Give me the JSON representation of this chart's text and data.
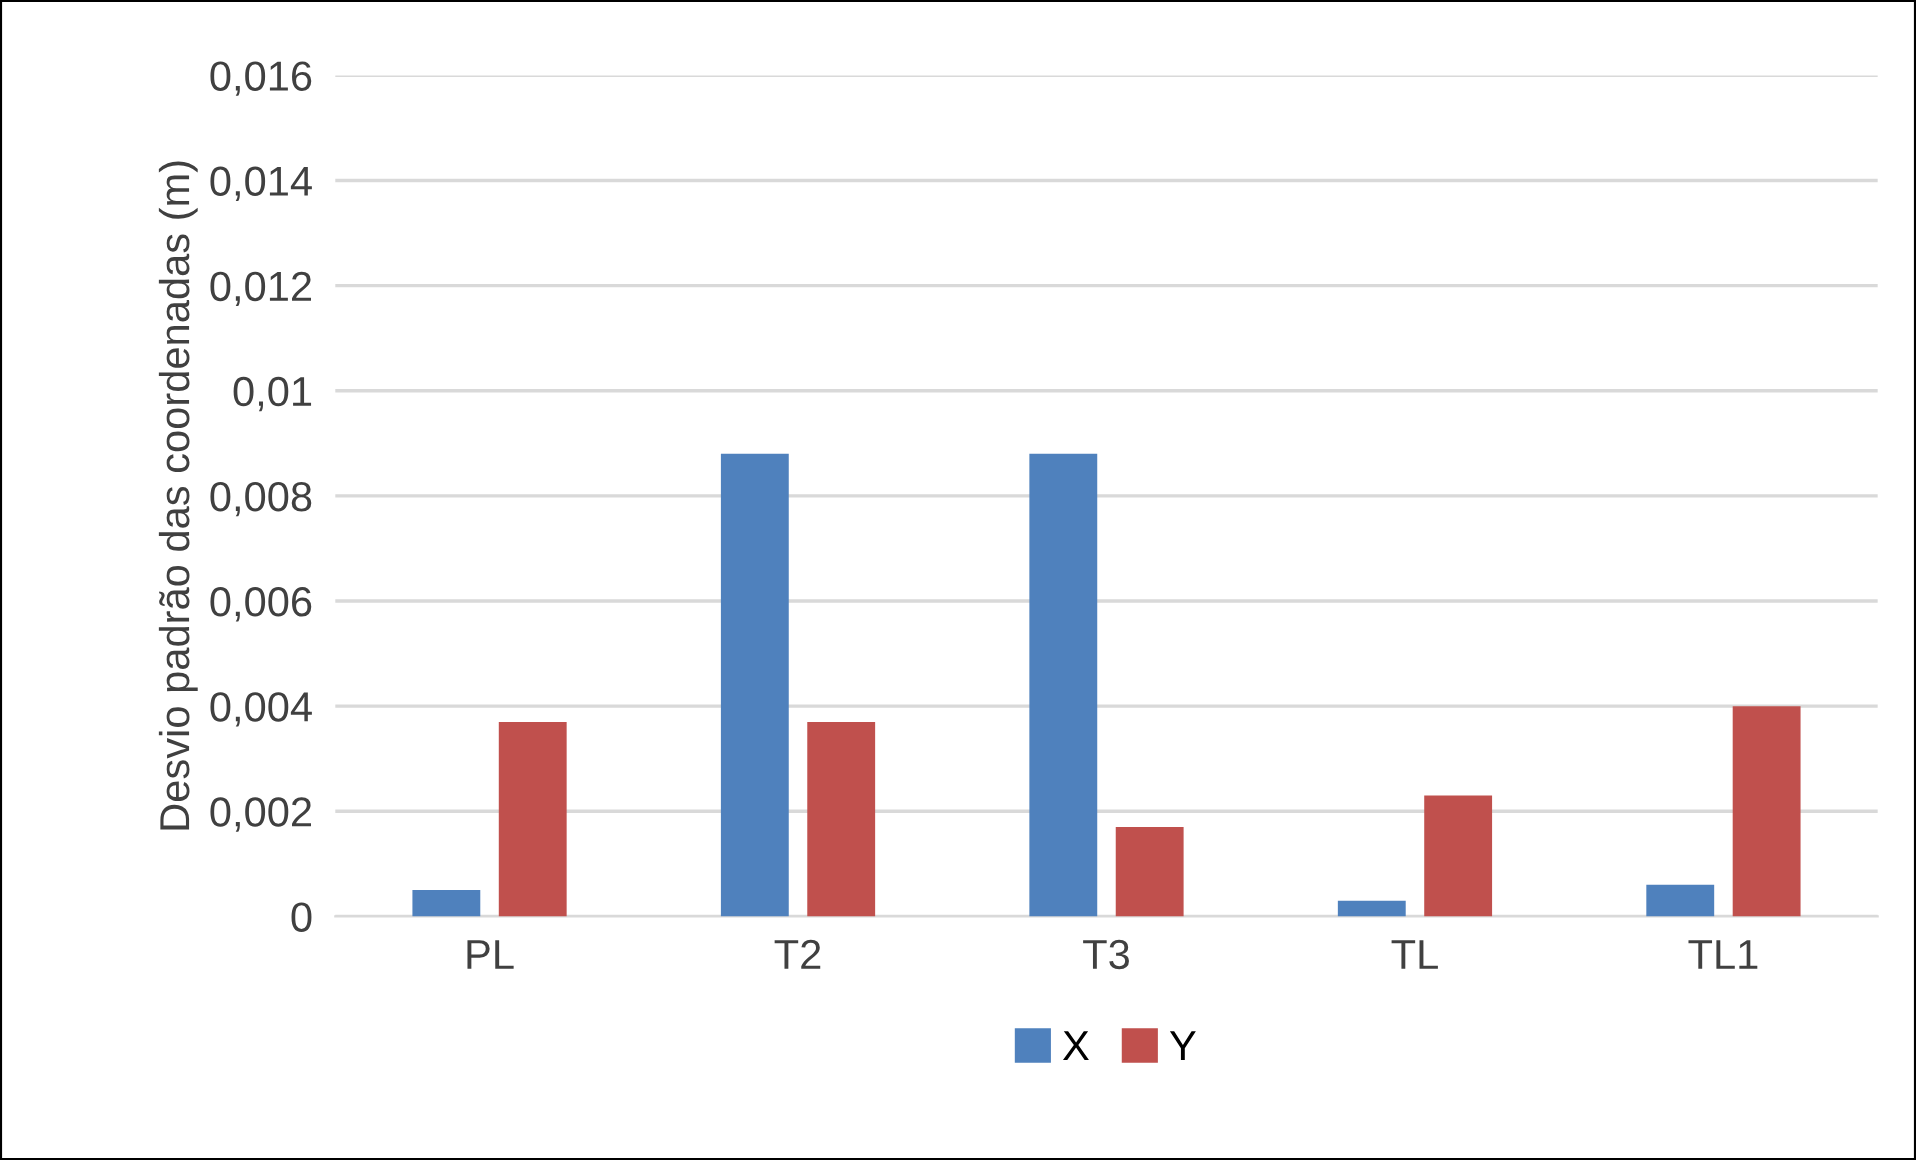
{
  "chart_data": {
    "type": "bar",
    "ylabel": "Desvio padrão das coordenadas (m)",
    "categories": [
      "PL",
      "T2",
      "T3",
      "TL",
      "TL1"
    ],
    "series": [
      {
        "name": "X",
        "color": "#4f81bd",
        "values": [
          0.0005,
          0.0088,
          0.0088,
          0.0003,
          0.0006
        ]
      },
      {
        "name": "Y",
        "color": "#c0504d",
        "values": [
          0.0037,
          0.0037,
          0.0017,
          0.0023,
          0.004
        ]
      }
    ],
    "ylim": [
      0,
      0.016
    ],
    "yticks": [
      {
        "value": 0,
        "label": "0"
      },
      {
        "value": 0.002,
        "label": "0,002"
      },
      {
        "value": 0.004,
        "label": "0,004"
      },
      {
        "value": 0.006,
        "label": "0,006"
      },
      {
        "value": 0.008,
        "label": "0,008"
      },
      {
        "value": 0.01,
        "label": "0,01"
      },
      {
        "value": 0.012,
        "label": "0,012"
      },
      {
        "value": 0.014,
        "label": "0,014"
      },
      {
        "value": 0.016,
        "label": "0,016"
      }
    ],
    "grid": "y",
    "legend": "bottom"
  }
}
